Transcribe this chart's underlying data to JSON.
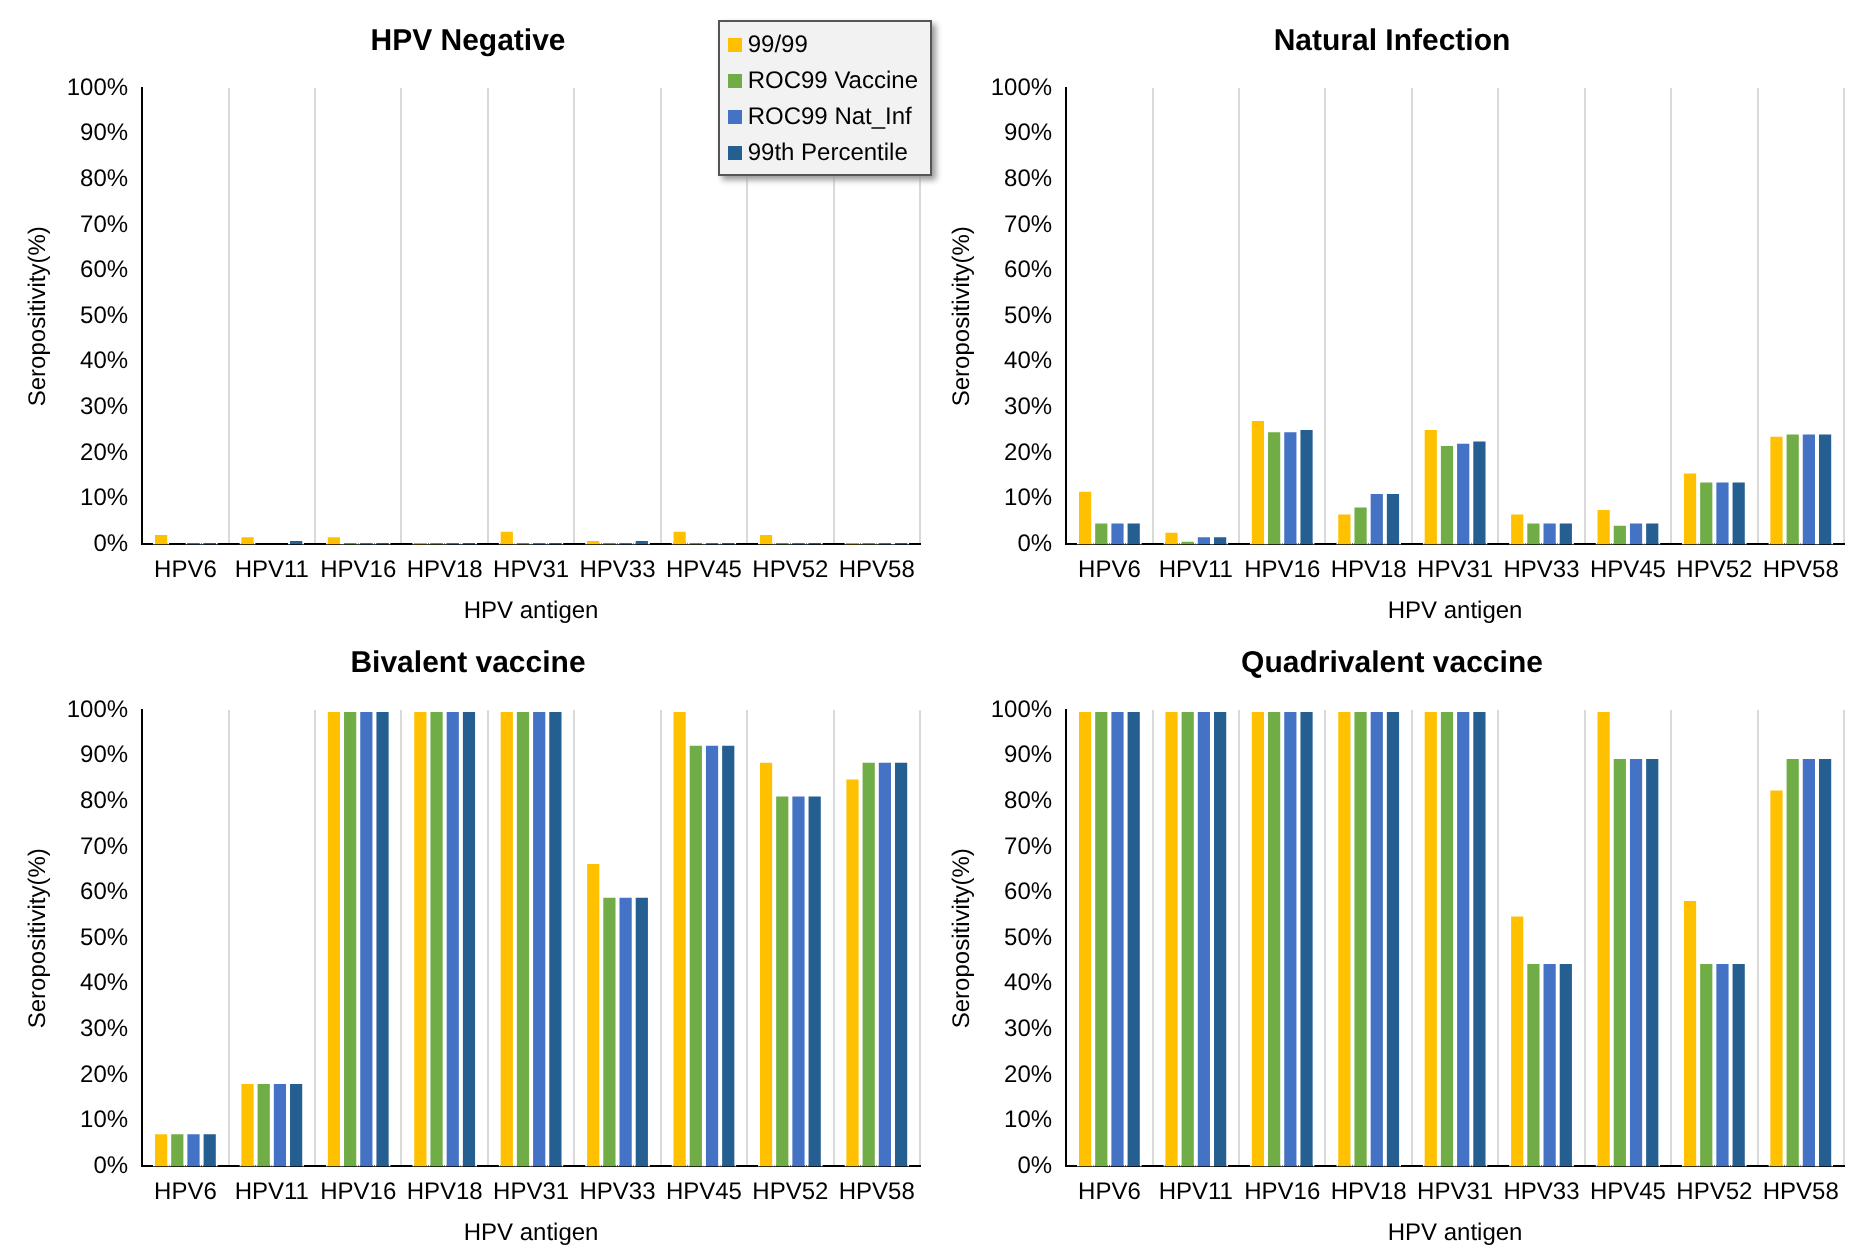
{
  "chart_data": [
    {
      "type": "bar",
      "title": "HPV Negative",
      "xlabel": "HPV antigen",
      "ylabel": "Seropositivity(%)",
      "categories": [
        "HPV6",
        "HPV11",
        "HPV16",
        "HPV18",
        "HPV31",
        "HPV33",
        "HPV45",
        "HPV52",
        "HPV58"
      ],
      "series": [
        {
          "name": "99/99",
          "color": "#ffc000",
          "values": [
            2.5,
            2,
            2,
            0.5,
            3.2,
            1.2,
            3.2,
            2.5,
            0.5
          ]
        },
        {
          "name": "ROC99 Vaccine",
          "color": "#70ad47",
          "values": [
            0,
            0,
            0.5,
            0.5,
            0.5,
            0.5,
            0.5,
            0.5,
            0.5
          ]
        },
        {
          "name": "ROC99 Nat_Inf",
          "color": "#4472c4",
          "values": [
            0.5,
            0,
            0.5,
            0.5,
            0.5,
            0.5,
            0.5,
            0.5,
            0.5
          ]
        },
        {
          "name": "99th Percentile",
          "color": "#255e91",
          "values": [
            0.5,
            1.2,
            0.5,
            0.5,
            0.5,
            1.2,
            0.5,
            0.5,
            0.5
          ]
        }
      ],
      "ylim": [
        0,
        100
      ],
      "yticks": [
        {
          "value": 0,
          "label": "0%"
        },
        {
          "value": 10,
          "label": "10%"
        },
        {
          "value": 20,
          "label": "20%"
        },
        {
          "value": 30,
          "label": "30%"
        },
        {
          "value": 40,
          "label": "40%"
        },
        {
          "value": 50,
          "label": "50%"
        },
        {
          "value": 60,
          "label": "60%"
        },
        {
          "value": 70,
          "label": "70%"
        },
        {
          "value": 80,
          "label": "80%"
        },
        {
          "value": 90,
          "label": "90%"
        },
        {
          "value": 100,
          "label": "100%"
        }
      ],
      "grid": "x",
      "legend": "top right"
    },
    {
      "type": "bar",
      "title": "Natural Infection",
      "xlabel": "HPV antigen",
      "ylabel": "Seropositivity(%)",
      "categories": [
        "HPV6",
        "HPV11",
        "HPV16",
        "HPV18",
        "HPV31",
        "HPV33",
        "HPV45",
        "HPV52",
        "HPV58"
      ],
      "series": [
        {
          "color": "#ffc000",
          "values": [
            12,
            3,
            27.5,
            7,
            25.5,
            7,
            8,
            16,
            24
          ]
        },
        {
          "color": "#70ad47",
          "values": [
            5,
            1,
            25,
            8.5,
            22,
            5,
            4.5,
            14,
            24.5
          ]
        },
        {
          "color": "#4472c4",
          "values": [
            5,
            2,
            25,
            11.5,
            22.5,
            5,
            5,
            14,
            24.5
          ]
        },
        {
          "color": "#255e91",
          "values": [
            5,
            2,
            25.5,
            11.5,
            23,
            5,
            5,
            14,
            24.5
          ]
        }
      ],
      "ylim": [
        0,
        100
      ],
      "yticks": [
        {
          "value": 0,
          "label": "0%"
        },
        {
          "value": 10,
          "label": "10%"
        },
        {
          "value": 20,
          "label": "20%"
        },
        {
          "value": 30,
          "label": "30%"
        },
        {
          "value": 40,
          "label": "40%"
        },
        {
          "value": 50,
          "label": "50%"
        },
        {
          "value": 60,
          "label": "60%"
        },
        {
          "value": 70,
          "label": "70%"
        },
        {
          "value": 80,
          "label": "80%"
        },
        {
          "value": 90,
          "label": "90%"
        },
        {
          "value": 100,
          "label": "100%"
        }
      ],
      "grid": "x"
    },
    {
      "type": "bar",
      "title": "Bivalent vaccine",
      "xlabel": "HPV antigen",
      "ylabel": "Seropositivity(%)",
      "categories": [
        "HPV6",
        "HPV11",
        "HPV16",
        "HPV18",
        "HPV31",
        "HPV33",
        "HPV45",
        "HPV52",
        "HPV58"
      ],
      "series": [
        {
          "color": "#ffc000",
          "values": [
            7.5,
            18.5,
            100,
            100,
            100,
            66.7,
            100,
            88.9,
            85.2
          ]
        },
        {
          "color": "#70ad47",
          "values": [
            7.5,
            18.5,
            100,
            100,
            100,
            59.3,
            92.6,
            81.5,
            88.9
          ]
        },
        {
          "color": "#4472c4",
          "values": [
            7.5,
            18.5,
            100,
            100,
            100,
            59.3,
            92.6,
            81.5,
            88.9
          ]
        },
        {
          "color": "#255e91",
          "values": [
            7.5,
            18.5,
            100,
            100,
            100,
            59.3,
            92.6,
            81.5,
            88.9
          ]
        }
      ],
      "ylim": [
        0,
        100
      ],
      "yticks": [
        {
          "value": 0,
          "label": "0%"
        },
        {
          "value": 10,
          "label": "10%"
        },
        {
          "value": 20,
          "label": "20%"
        },
        {
          "value": 30,
          "label": "30%"
        },
        {
          "value": 40,
          "label": "40%"
        },
        {
          "value": 50,
          "label": "50%"
        },
        {
          "value": 60,
          "label": "60%"
        },
        {
          "value": 70,
          "label": "70%"
        },
        {
          "value": 80,
          "label": "80%"
        },
        {
          "value": 90,
          "label": "90%"
        },
        {
          "value": 100,
          "label": "100%"
        }
      ],
      "grid": "x"
    },
    {
      "type": "bar",
      "title": "Quadrivalent vaccine",
      "xlabel": "HPV antigen",
      "ylabel": "Seropositivity(%)",
      "categories": [
        "HPV6",
        "HPV11",
        "HPV16",
        "HPV18",
        "HPV31",
        "HPV33",
        "HPV45",
        "HPV52",
        "HPV58"
      ],
      "series": [
        {
          "color": "#ffc000",
          "values": [
            100,
            100,
            100,
            100,
            100,
            55.2,
            100,
            58.6,
            82.8
          ]
        },
        {
          "color": "#70ad47",
          "values": [
            100,
            100,
            100,
            100,
            100,
            44.8,
            89.7,
            44.8,
            89.7
          ]
        },
        {
          "color": "#4472c4",
          "values": [
            100,
            100,
            100,
            100,
            100,
            44.8,
            89.7,
            44.8,
            89.7
          ]
        },
        {
          "color": "#255e91",
          "values": [
            100,
            100,
            100,
            100,
            100,
            44.8,
            89.7,
            44.8,
            89.7
          ]
        }
      ],
      "ylim": [
        0,
        100
      ],
      "yticks": [
        {
          "value": 0,
          "label": "0%"
        },
        {
          "value": 10,
          "label": "10%"
        },
        {
          "value": 20,
          "label": "20%"
        },
        {
          "value": 30,
          "label": "30%"
        },
        {
          "value": 40,
          "label": "40%"
        },
        {
          "value": 50,
          "label": "50%"
        },
        {
          "value": 60,
          "label": "60%"
        },
        {
          "value": 70,
          "label": "70%"
        },
        {
          "value": 80,
          "label": "80%"
        },
        {
          "value": 90,
          "label": "90%"
        },
        {
          "value": 100,
          "label": "100%"
        }
      ],
      "grid": "x"
    }
  ]
}
